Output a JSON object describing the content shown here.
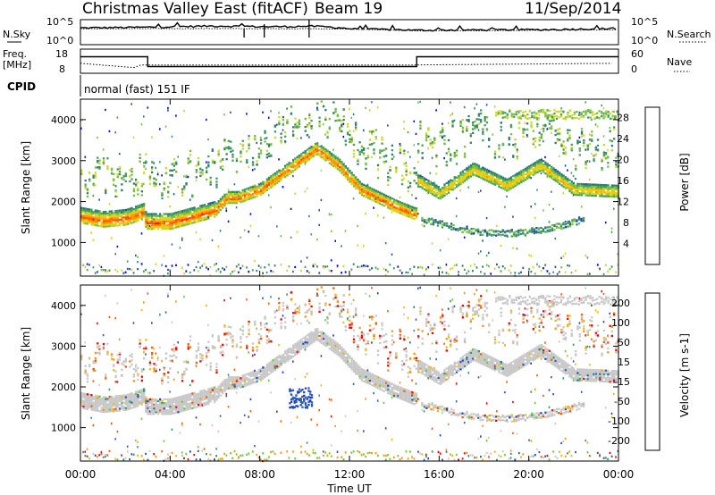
{
  "header": {
    "station": "Christmas Valley East (fitACF)",
    "beam": "Beam 19",
    "date": "11/Sep/2014"
  },
  "left_labels": {
    "nsky": "N.Sky",
    "freq": "Freq.",
    "freq_unit": "[MHz]",
    "cpid": "CPID"
  },
  "right_labels": {
    "nsearch": "N.Search",
    "nave": "Nave"
  },
  "cpid_text": "normal (fast) 151 IF",
  "colors": {
    "power": [
      "#0000ff",
      "#1f4fa8",
      "#2f7f6f",
      "#3f9f5f",
      "#77bf3f",
      "#cfd81f",
      "#ffbf00",
      "#ff8f00",
      "#ff4f00",
      "#ff0000"
    ],
    "velocity": [
      "#ff0000",
      "#ff5500",
      "#ff9500",
      "#f5b800",
      "#c8c8c8",
      "#c8c8c8",
      "#66cc33",
      "#2e9a6a",
      "#2b5fae",
      "#1f3fd0"
    ],
    "ground_scatter": "#c8c8c8"
  },
  "chart_data": [
    {
      "type": "line",
      "panel": "noise",
      "left_ticks": [
        "10^5",
        "10^0"
      ],
      "right_ticks": [
        "10^5",
        "10^0"
      ],
      "x": [
        "00:00",
        "03:00",
        "06:00",
        "08:30",
        "10:20",
        "12:00",
        "15:00",
        "18:00",
        "21:00",
        "24:00"
      ],
      "series": [
        {
          "name": "N.Sky",
          "values": [
            3200,
            4500,
            9000,
            6000,
            8000,
            2000,
            900,
            1100,
            1300,
            2400
          ]
        },
        {
          "name": "N.Search",
          "values": [
            2000,
            2100,
            2200,
            2000,
            2100,
            1600,
            600,
            700,
            900,
            1100
          ]
        }
      ]
    },
    {
      "type": "line",
      "panel": "frequency",
      "left_ticks": [
        "18",
        "8"
      ],
      "right_ticks": [
        "60",
        "0"
      ],
      "x": [
        "00:00",
        "02:10",
        "03:00",
        "15:00",
        "24:00"
      ],
      "series": [
        {
          "name": "Freq.",
          "values": [
            15.5,
            15.5,
            10.5,
            15.5,
            15.5
          ]
        },
        {
          "name": "Nave",
          "values": [
            25,
            20,
            20,
            20,
            25
          ]
        }
      ]
    },
    {
      "type": "heatmap",
      "panel": "power",
      "xlabel": "Time UT",
      "ylabel": "Slant Range [km]",
      "y_ticks": [
        "1000",
        "2000",
        "3000",
        "4000"
      ],
      "ylim": [
        180,
        4500
      ],
      "colorbar_label": "Power [dB]",
      "colorbar_ticks": [
        "4",
        "8",
        "12",
        "16",
        "20",
        "24",
        "28"
      ],
      "colorbar_range": [
        0,
        30
      ],
      "echo_bands": [
        {
          "t": [
            0,
            1,
            2,
            2.8,
            2.9,
            4,
            5,
            6,
            6.5,
            7,
            8,
            9,
            10.5,
            11.5,
            12.5,
            14,
            14.9
          ],
          "r": [
            1650,
            1550,
            1600,
            1750,
            1500,
            1500,
            1650,
            1800,
            2100,
            2100,
            2300,
            2700,
            3300,
            2900,
            2300,
            1900,
            1700
          ],
          "db": 26
        },
        {
          "t": [
            15.1,
            16,
            17.5,
            19,
            20.5,
            22,
            24
          ],
          "r": [
            2500,
            2200,
            2800,
            2400,
            2900,
            2300,
            2250
          ],
          "db": 21
        }
      ]
    },
    {
      "type": "heatmap",
      "panel": "velocity",
      "xlabel": "Time UT",
      "ylabel": "Slant Range [km]",
      "y_ticks": [
        "1000",
        "2000",
        "3000",
        "4000"
      ],
      "ylim": [
        180,
        4500
      ],
      "colorbar_label": "Velocity [m s-1]",
      "colorbar_ticks": [
        "200",
        "100",
        "50",
        "15",
        "-15",
        "-50",
        "-100",
        "-200"
      ],
      "colorbar_range": [
        -250,
        250
      ]
    }
  ],
  "x_axis": {
    "label": "Time UT",
    "ticks": [
      "00:00",
      "04:00",
      "08:00",
      "12:00",
      "16:00",
      "20:00",
      "00:00"
    ]
  }
}
